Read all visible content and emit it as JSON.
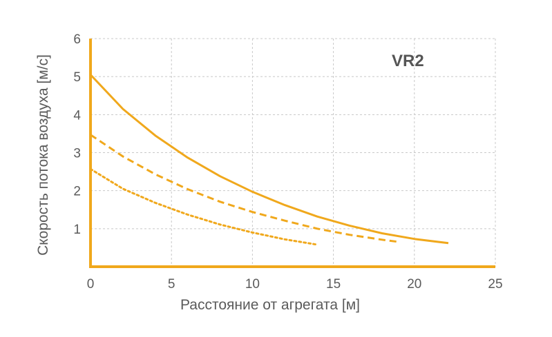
{
  "chart_data": {
    "type": "line",
    "xlabel": "Расстояние от агрегата [м]",
    "ylabel": "Скорость потока воздуха [м/с]",
    "xlim": [
      0,
      25
    ],
    "ylim": [
      0,
      6
    ],
    "x_ticks": [
      "0",
      "5",
      "10",
      "15",
      "20",
      "25"
    ],
    "y_ticks": [
      "1",
      "2",
      "3",
      "4",
      "5",
      "6"
    ],
    "grid": true,
    "annotation": "VR2",
    "colors": {
      "series": "#f0a81c",
      "axis": "#f0a81c",
      "grid": "#c8c8c8"
    },
    "series": [
      {
        "style": "solid",
        "x": [
          0,
          2,
          4,
          6,
          8,
          10,
          12,
          14,
          16,
          18,
          20,
          22.1
        ],
        "y": [
          5.05,
          4.15,
          3.45,
          2.87,
          2.38,
          1.97,
          1.62,
          1.32,
          1.08,
          0.88,
          0.73,
          0.62
        ]
      },
      {
        "style": "dashed",
        "x": [
          0,
          2,
          4,
          6,
          8,
          10,
          12,
          14,
          16,
          18,
          18.9
        ],
        "y": [
          3.47,
          2.9,
          2.43,
          2.04,
          1.71,
          1.44,
          1.21,
          1.0,
          0.84,
          0.71,
          0.66
        ]
      },
      {
        "style": "dotted",
        "x": [
          0,
          2,
          4,
          6,
          8,
          10,
          12,
          14
        ],
        "y": [
          2.57,
          2.05,
          1.68,
          1.37,
          1.11,
          0.9,
          0.72,
          0.58
        ]
      }
    ]
  }
}
